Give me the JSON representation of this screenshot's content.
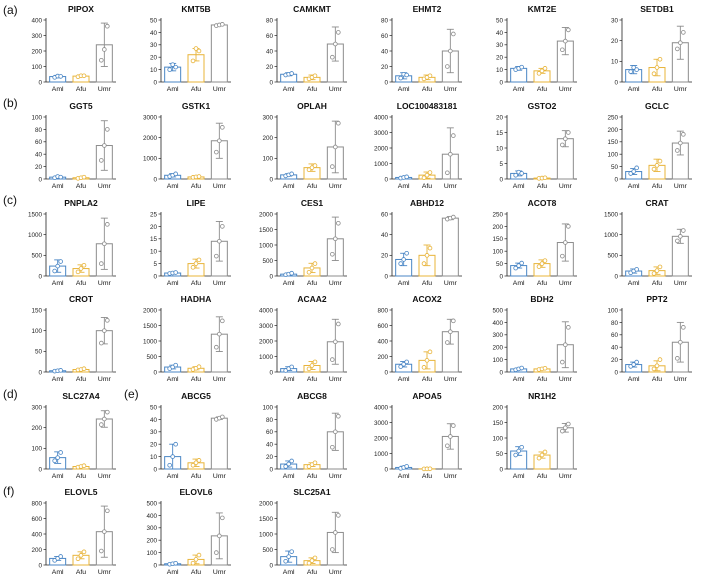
{
  "panel_labels": {
    "a": "(a)",
    "b": "(b)",
    "c": "(c)",
    "d": "(d)",
    "e": "(e)",
    "f": "(f)"
  },
  "colors": {
    "Aml": "#4a86c5",
    "Afu": "#e8b43a",
    "Umr": "#8c8c8c"
  },
  "chart_data": [
    {
      "type": "bar",
      "title": "PIPOX",
      "categories": [
        "Aml",
        "Afu",
        "Umr"
      ],
      "ylim": [
        0,
        400
      ],
      "yticks": [
        0,
        100,
        200,
        300,
        400
      ],
      "values": [
        35,
        38,
        240
      ],
      "errors": [
        8,
        6,
        140
      ],
      "points": [
        [
          30,
          38,
          36
        ],
        [
          34,
          40,
          40
        ],
        [
          140,
          210,
          360
        ]
      ]
    },
    {
      "type": "bar",
      "title": "KMT5B",
      "categories": [
        "Aml",
        "Afu",
        "Umr"
      ],
      "ylim": [
        0,
        50
      ],
      "yticks": [
        0,
        10,
        20,
        30,
        40,
        50
      ],
      "values": [
        12,
        22,
        46
      ],
      "errors": [
        3,
        5,
        0.5
      ],
      "points": [
        [
          10,
          14,
          12
        ],
        [
          17,
          27,
          25
        ],
        [
          45.5,
          46,
          46.5
        ]
      ]
    },
    {
      "type": "bar",
      "title": "CAMKMT",
      "categories": [
        "Aml",
        "Afu",
        "Umr"
      ],
      "ylim": [
        0,
        80
      ],
      "yticks": [
        0,
        20,
        40,
        60,
        80
      ],
      "values": [
        10,
        6,
        49
      ],
      "errors": [
        2,
        3,
        22
      ],
      "points": [
        [
          9,
          10,
          11
        ],
        [
          4,
          6,
          8
        ],
        [
          32,
          49,
          64
        ]
      ]
    },
    {
      "type": "bar",
      "title": "EHMT2",
      "categories": [
        "Aml",
        "Afu",
        "Umr"
      ],
      "ylim": [
        0,
        80
      ],
      "yticks": [
        0,
        20,
        40,
        60,
        80
      ],
      "values": [
        8,
        6,
        40
      ],
      "errors": [
        4,
        3,
        28
      ],
      "points": [
        [
          5,
          10,
          9
        ],
        [
          4,
          6,
          8
        ],
        [
          20,
          40,
          62
        ]
      ]
    },
    {
      "type": "bar",
      "title": "KMT2E",
      "categories": [
        "Aml",
        "Afu",
        "Umr"
      ],
      "ylim": [
        0,
        50
      ],
      "yticks": [
        0,
        10,
        20,
        30,
        40,
        50
      ],
      "values": [
        11,
        9,
        33
      ],
      "errors": [
        1.5,
        2,
        11
      ],
      "points": [
        [
          10,
          11,
          12
        ],
        [
          7,
          9,
          11
        ],
        [
          26,
          33,
          42
        ]
      ]
    },
    {
      "type": "bar",
      "title": "SETDB1",
      "categories": [
        "Aml",
        "Afu",
        "Umr"
      ],
      "ylim": [
        0,
        30
      ],
      "yticks": [
        0,
        10,
        20,
        30
      ],
      "values": [
        6,
        7,
        19
      ],
      "errors": [
        2,
        4,
        8
      ],
      "points": [
        [
          5,
          7,
          6
        ],
        [
          4,
          7,
          11
        ],
        [
          16,
          19,
          24
        ]
      ]
    },
    {
      "type": "bar",
      "title": "GGT5",
      "categories": [
        "Aml",
        "Afu",
        "Umr"
      ],
      "ylim": [
        0,
        100
      ],
      "yticks": [
        0,
        20,
        40,
        60,
        80,
        100
      ],
      "values": [
        3,
        2,
        54
      ],
      "errors": [
        2,
        1,
        40
      ],
      "points": [
        [
          2,
          4,
          3
        ],
        [
          1,
          2,
          3
        ],
        [
          30,
          54,
          80
        ]
      ]
    },
    {
      "type": "bar",
      "title": "GSTK1",
      "categories": [
        "Aml",
        "Afu",
        "Umr"
      ],
      "ylim": [
        0,
        3000
      ],
      "yticks": [
        0,
        1000,
        2000,
        3000
      ],
      "values": [
        180,
        100,
        1850
      ],
      "errors": [
        80,
        30,
        850
      ],
      "points": [
        [
          120,
          180,
          250
        ],
        [
          80,
          100,
          120
        ],
        [
          1300,
          1850,
          2500
        ]
      ]
    },
    {
      "type": "bar",
      "title": "OPLAH",
      "categories": [
        "Aml",
        "Afu",
        "Umr"
      ],
      "ylim": [
        0,
        300
      ],
      "yticks": [
        0,
        100,
        200,
        300
      ],
      "values": [
        20,
        55,
        155
      ],
      "errors": [
        6,
        18,
        125
      ],
      "points": [
        [
          15,
          20,
          25
        ],
        [
          45,
          55,
          65
        ],
        [
          60,
          155,
          270
        ]
      ]
    },
    {
      "type": "bar",
      "title": "LOC100483181",
      "categories": [
        "Aml",
        "Afu",
        "Umr"
      ],
      "ylim": [
        0,
        4000
      ],
      "yticks": [
        0,
        1000,
        2000,
        3000,
        4000
      ],
      "values": [
        100,
        250,
        1600
      ],
      "errors": [
        60,
        200,
        1700
      ],
      "points": [
        [
          60,
          100,
          140
        ],
        [
          80,
          250,
          420
        ],
        [
          400,
          1600,
          2800
        ]
      ]
    },
    {
      "type": "bar",
      "title": "GSTO2",
      "categories": [
        "Aml",
        "Afu",
        "Umr"
      ],
      "ylim": [
        0,
        20
      ],
      "yticks": [
        0,
        5,
        10,
        15,
        20
      ],
      "values": [
        1.8,
        0.3,
        13
      ],
      "errors": [
        0.8,
        0.2,
        2.6
      ],
      "points": [
        [
          1.2,
          2.2,
          1.8
        ],
        [
          0.2,
          0.3,
          0.4
        ],
        [
          11,
          13,
          15
        ]
      ]
    },
    {
      "type": "bar",
      "title": "GCLC",
      "categories": [
        "Aml",
        "Afu",
        "Umr"
      ],
      "ylim": [
        0,
        250
      ],
      "yticks": [
        0,
        50,
        100,
        150,
        200,
        250
      ],
      "values": [
        30,
        55,
        145
      ],
      "errors": [
        12,
        25,
        48
      ],
      "points": [
        [
          22,
          30,
          45
        ],
        [
          40,
          55,
          72
        ],
        [
          115,
          145,
          180
        ]
      ]
    },
    {
      "type": "bar",
      "title": "PNPLA2",
      "categories": [
        "Aml",
        "Afu",
        "Umr"
      ],
      "ylim": [
        0,
        1500
      ],
      "yticks": [
        0,
        500,
        1000,
        1500
      ],
      "values": [
        240,
        180,
        780
      ],
      "errors": [
        150,
        90,
        620
      ],
      "points": [
        [
          120,
          240,
          350
        ],
        [
          100,
          180,
          260
        ],
        [
          300,
          780,
          1250
        ]
      ]
    },
    {
      "type": "bar",
      "title": "LIPE",
      "categories": [
        "Aml",
        "Afu",
        "Umr"
      ],
      "ylim": [
        0,
        25
      ],
      "yticks": [
        0,
        5,
        10,
        15,
        20,
        25
      ],
      "values": [
        1.2,
        5,
        14
      ],
      "errors": [
        0.3,
        1.8,
        8
      ],
      "points": [
        [
          1,
          1.2,
          1.4
        ],
        [
          3.5,
          5,
          6.5
        ],
        [
          8,
          14,
          20
        ]
      ]
    },
    {
      "type": "bar",
      "title": "CES1",
      "categories": [
        "Aml",
        "Afu",
        "Umr"
      ],
      "ylim": [
        0,
        2000
      ],
      "yticks": [
        0,
        500,
        1000,
        1500,
        2000
      ],
      "values": [
        60,
        260,
        1200
      ],
      "errors": [
        40,
        150,
        700
      ],
      "points": [
        [
          40,
          60,
          90
        ],
        [
          120,
          260,
          400
        ],
        [
          700,
          1200,
          1700
        ]
      ]
    },
    {
      "type": "bar",
      "title": "ABHD12",
      "categories": [
        "Aml",
        "Afu",
        "Umr"
      ],
      "ylim": [
        0,
        60
      ],
      "yticks": [
        0,
        20,
        40,
        60
      ],
      "values": [
        16,
        20,
        56
      ],
      "errors": [
        6,
        10,
        1.5
      ],
      "points": [
        [
          12,
          16,
          22
        ],
        [
          12,
          20,
          27
        ],
        [
          55,
          56,
          57
        ]
      ]
    },
    {
      "type": "bar",
      "title": "ACOT8",
      "categories": [
        "Aml",
        "Afu",
        "Umr"
      ],
      "ylim": [
        0,
        250
      ],
      "yticks": [
        0,
        50,
        100,
        150,
        200,
        250
      ],
      "values": [
        42,
        50,
        135
      ],
      "errors": [
        10,
        15,
        75
      ],
      "points": [
        [
          32,
          42,
          52
        ],
        [
          38,
          50,
          62
        ],
        [
          80,
          135,
          200
        ]
      ]
    },
    {
      "type": "bar",
      "title": "CRAT",
      "categories": [
        "Aml",
        "Afu",
        "Umr"
      ],
      "ylim": [
        0,
        1500
      ],
      "yticks": [
        0,
        500,
        1000,
        1500
      ],
      "values": [
        120,
        130,
        960
      ],
      "errors": [
        50,
        90,
        170
      ],
      "points": [
        [
          80,
          120,
          160
        ],
        [
          60,
          130,
          220
        ],
        [
          850,
          960,
          1100
        ]
      ]
    },
    {
      "type": "bar",
      "title": "CROT",
      "categories": [
        "Aml",
        "Afu",
        "Umr"
      ],
      "ylim": [
        0,
        150
      ],
      "yticks": [
        0,
        50,
        100,
        150
      ],
      "values": [
        3,
        6,
        100
      ],
      "errors": [
        1,
        2,
        32
      ],
      "points": [
        [
          2,
          3,
          4
        ],
        [
          5,
          6,
          8
        ],
        [
          70,
          100,
          125
        ]
      ]
    },
    {
      "type": "bar",
      "title": "HADHA",
      "categories": [
        "Aml",
        "Afu",
        "Umr"
      ],
      "ylim": [
        0,
        2000
      ],
      "yticks": [
        0,
        500,
        1000,
        1500,
        2000
      ],
      "values": [
        160,
        120,
        1220
      ],
      "errors": [
        60,
        50,
        560
      ],
      "points": [
        [
          110,
          160,
          220
        ],
        [
          80,
          120,
          170
        ],
        [
          800,
          1220,
          1650
        ]
      ]
    },
    {
      "type": "bar",
      "title": "ACAA2",
      "categories": [
        "Aml",
        "Afu",
        "Umr"
      ],
      "ylim": [
        0,
        4000
      ],
      "yticks": [
        0,
        1000,
        2000,
        3000,
        4000
      ],
      "values": [
        220,
        420,
        1950
      ],
      "errors": [
        120,
        260,
        1450
      ],
      "points": [
        [
          100,
          220,
          330
        ],
        [
          200,
          420,
          650
        ],
        [
          800,
          1950,
          3100
        ]
      ]
    },
    {
      "type": "bar",
      "title": "ACOX2",
      "categories": [
        "Aml",
        "Afu",
        "Umr"
      ],
      "ylim": [
        0,
        800
      ],
      "yticks": [
        0,
        200,
        400,
        600,
        800
      ],
      "values": [
        100,
        150,
        520
      ],
      "errors": [
        35,
        110,
        160
      ],
      "points": [
        [
          70,
          100,
          130
        ],
        [
          60,
          150,
          260
        ],
        [
          380,
          520,
          660
        ]
      ]
    },
    {
      "type": "bar",
      "title": "BDH2",
      "categories": [
        "Aml",
        "Afu",
        "Umr"
      ],
      "ylim": [
        0,
        500
      ],
      "yticks": [
        0,
        100,
        200,
        300,
        400,
        500
      ],
      "values": [
        25,
        25,
        220
      ],
      "errors": [
        8,
        8,
        185
      ],
      "points": [
        [
          18,
          25,
          32
        ],
        [
          20,
          25,
          30
        ],
        [
          80,
          220,
          360
        ]
      ]
    },
    {
      "type": "bar",
      "title": "PPT2",
      "categories": [
        "Aml",
        "Afu",
        "Umr"
      ],
      "ylim": [
        0,
        100
      ],
      "yticks": [
        0,
        20,
        40,
        60,
        80,
        100
      ],
      "values": [
        12,
        10,
        48
      ],
      "errors": [
        4,
        8,
        32
      ],
      "points": [
        [
          9,
          12,
          16
        ],
        [
          5,
          10,
          20
        ],
        [
          22,
          48,
          72
        ]
      ]
    },
    {
      "type": "bar",
      "title": "SLC27A4",
      "categories": [
        "Aml",
        "Afu",
        "Umr"
      ],
      "ylim": [
        0,
        300
      ],
      "yticks": [
        0,
        100,
        200,
        300
      ],
      "values": [
        55,
        12,
        242
      ],
      "errors": [
        28,
        4,
        40
      ],
      "points": [
        [
          40,
          55,
          80
        ],
        [
          9,
          12,
          16
        ],
        [
          215,
          242,
          275
        ]
      ]
    },
    {
      "type": "bar",
      "title": "ABCG5",
      "categories": [
        "Aml",
        "Afu",
        "Umr"
      ],
      "ylim": [
        0,
        50
      ],
      "yticks": [
        0,
        10,
        20,
        30,
        40,
        50
      ],
      "values": [
        10,
        5,
        41
      ],
      "errors": [
        10,
        3,
        1
      ],
      "points": [
        [
          3,
          10,
          20
        ],
        [
          3,
          5,
          7
        ],
        [
          40,
          41,
          42
        ]
      ]
    },
    {
      "type": "bar",
      "title": "ABCG8",
      "categories": [
        "Aml",
        "Afu",
        "Umr"
      ],
      "ylim": [
        0,
        100
      ],
      "yticks": [
        0,
        20,
        40,
        60,
        80,
        100
      ],
      "values": [
        8,
        7,
        60
      ],
      "errors": [
        5,
        3,
        30
      ],
      "points": [
        [
          4,
          8,
          13
        ],
        [
          4,
          7,
          10
        ],
        [
          35,
          60,
          85
        ]
      ]
    },
    {
      "type": "bar",
      "title": "APOA5",
      "categories": [
        "Aml",
        "Afu",
        "Umr"
      ],
      "ylim": [
        0,
        4000
      ],
      "yticks": [
        0,
        1000,
        2000,
        3000,
        4000
      ],
      "values": [
        100,
        10,
        2100
      ],
      "errors": [
        80,
        10,
        820
      ],
      "points": [
        [
          40,
          100,
          170
        ],
        [
          5,
          10,
          15
        ],
        [
          1500,
          2100,
          2800
        ]
      ]
    },
    {
      "type": "bar",
      "title": "NR1H2",
      "categories": [
        "Aml",
        "Afu",
        "Umr"
      ],
      "ylim": [
        0,
        200
      ],
      "yticks": [
        0,
        50,
        100,
        150,
        200
      ],
      "values": [
        58,
        45,
        133
      ],
      "errors": [
        14,
        10,
        14
      ],
      "points": [
        [
          45,
          58,
          70
        ],
        [
          35,
          45,
          55
        ],
        [
          122,
          133,
          145
        ]
      ]
    },
    {
      "type": "bar",
      "title": "ELOVL5",
      "categories": [
        "Aml",
        "Afu",
        "Umr"
      ],
      "ylim": [
        0,
        800
      ],
      "yticks": [
        0,
        200,
        400,
        600,
        800
      ],
      "values": [
        85,
        125,
        430
      ],
      "errors": [
        25,
        45,
        330
      ],
      "points": [
        [
          60,
          85,
          110
        ],
        [
          80,
          125,
          170
        ],
        [
          180,
          430,
          700
        ]
      ]
    },
    {
      "type": "bar",
      "title": "ELOVL6",
      "categories": [
        "Aml",
        "Afu",
        "Umr"
      ],
      "ylim": [
        0,
        500
      ],
      "yticks": [
        0,
        100,
        200,
        300,
        400,
        500
      ],
      "values": [
        10,
        45,
        235
      ],
      "errors": [
        5,
        35,
        185
      ],
      "points": [
        [
          6,
          10,
          14
        ],
        [
          15,
          45,
          80
        ],
        [
          100,
          235,
          380
        ]
      ]
    },
    {
      "type": "bar",
      "title": "SLC25A1",
      "categories": [
        "Aml",
        "Afu",
        "Umr"
      ],
      "ylim": [
        0,
        2000
      ],
      "yticks": [
        0,
        500,
        1000,
        1500,
        2000
      ],
      "values": [
        270,
        140,
        1050
      ],
      "errors": [
        180,
        90,
        650
      ],
      "points": [
        [
          120,
          270,
          430
        ],
        [
          60,
          140,
          230
        ],
        [
          500,
          1050,
          1600
        ]
      ]
    }
  ]
}
